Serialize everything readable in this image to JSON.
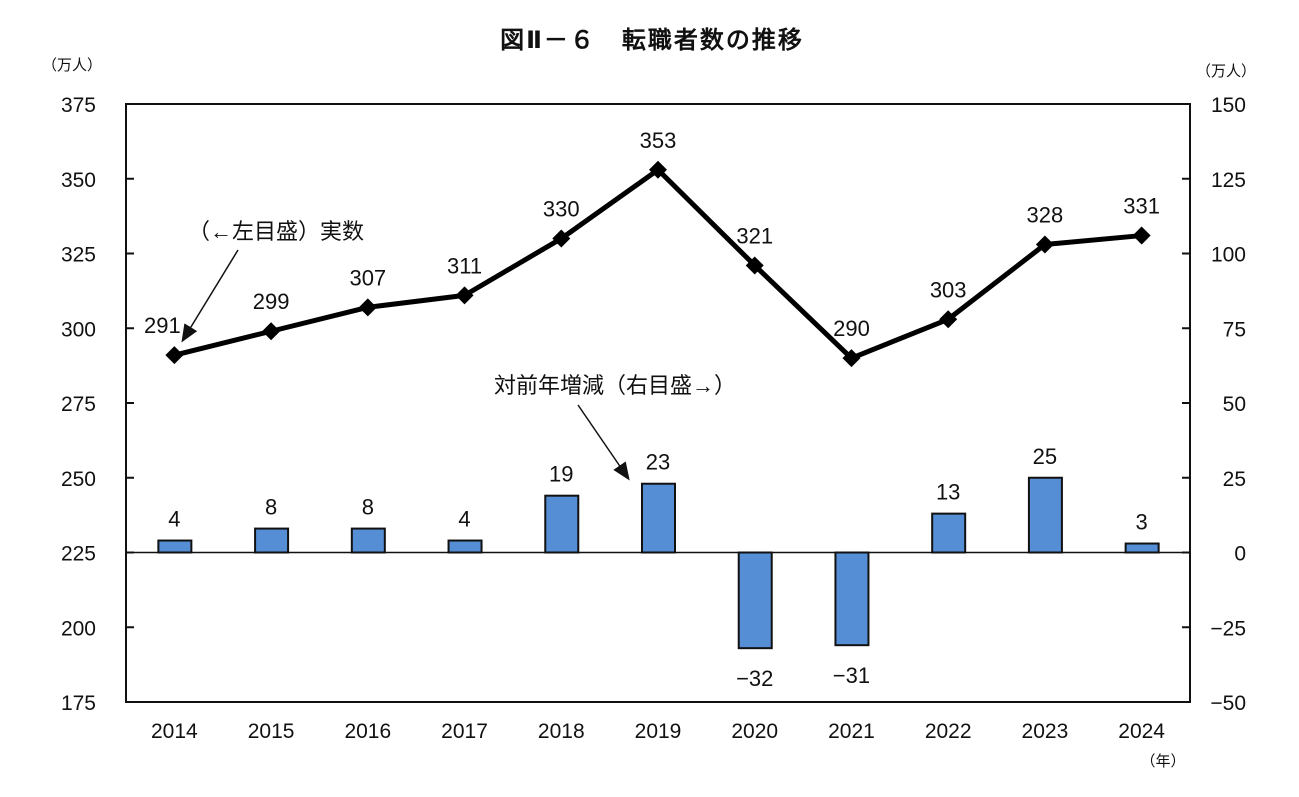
{
  "chart_data": {
    "type": "bar+line",
    "title": "図Ⅱ－６　転職者数の推移",
    "left_unit": "（万人）",
    "right_unit": "（万人）",
    "x_unit": "（年）",
    "categories": [
      "2014",
      "2015",
      "2016",
      "2017",
      "2018",
      "2019",
      "2020",
      "2021",
      "2022",
      "2023",
      "2024"
    ],
    "series": [
      {
        "name": "実数",
        "axis": "left",
        "type": "line",
        "values": [
          291,
          299,
          307,
          311,
          330,
          353,
          321,
          290,
          303,
          328,
          331
        ],
        "labels": [
          "291",
          "299",
          "307",
          "311",
          "330",
          "353",
          "321",
          "290",
          "303",
          "328",
          "331"
        ]
      },
      {
        "name": "対前年増減",
        "axis": "right",
        "type": "bar",
        "color": "#558ED5",
        "values": [
          4,
          8,
          8,
          4,
          19,
          23,
          -32,
          -31,
          13,
          25,
          3
        ],
        "labels": [
          "4",
          "8",
          "8",
          "4",
          "19",
          "23",
          "−32",
          "−31",
          "13",
          "25",
          "3"
        ]
      }
    ],
    "left_axis": {
      "ylim": [
        175,
        375
      ],
      "ticks": [
        "175",
        "200",
        "225",
        "250",
        "275",
        "300",
        "325",
        "350",
        "375"
      ]
    },
    "right_axis": {
      "ylim": [
        -50,
        150
      ],
      "ticks": [
        "−50",
        "−25",
        "0",
        "25",
        "50",
        "75",
        "100",
        "125",
        "150"
      ]
    },
    "annotations": {
      "line": "（←左目盛）実数",
      "bar": "対前年増減（右目盛→）"
    }
  }
}
